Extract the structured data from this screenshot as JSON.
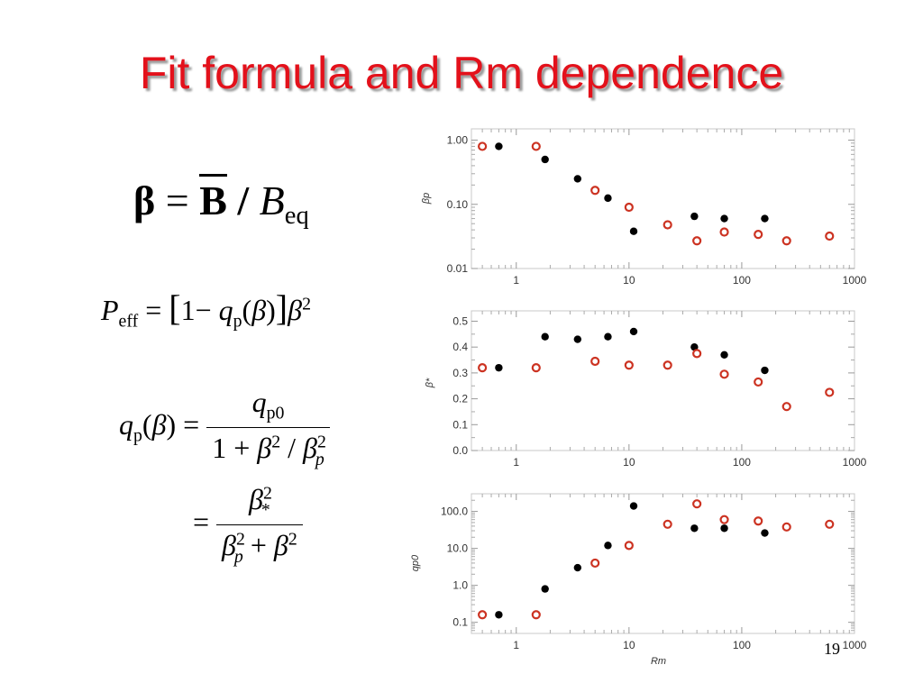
{
  "slide": {
    "title": "Fit formula and Rm dependence",
    "page_number": "19"
  },
  "equations": {
    "beta_definition": {
      "lhs": "β",
      "eq": "=",
      "bbar": "B",
      "slash": "/",
      "B": "B",
      "sub": "eq"
    },
    "p_eff": {
      "P": "P",
      "P_sub": "eff",
      "eq": "=",
      "lbracket": "[",
      "one": "1",
      "minus": "−",
      "q": "q",
      "q_sub": "p",
      "lparen": "(",
      "beta": "β",
      "rparen": ")",
      "rbracket": "]",
      "beta2": "β",
      "sup2": "2"
    },
    "q_p": {
      "q": "q",
      "q_sub": "p",
      "lparen": "(",
      "beta": "β",
      "rparen": ")",
      "eq": "=",
      "num_q": "q",
      "num_sub": "p0",
      "den_one": "1",
      "den_plus": "+",
      "den_beta": "β",
      "den_sup": "2",
      "den_slash": "/",
      "den_beta_p": "β",
      "den_beta_p_sup": "2",
      "den_beta_p_sub": "p"
    },
    "q_p_alt": {
      "eq": "=",
      "num_beta": "β",
      "num_sup": "2",
      "num_sub": "*",
      "den_beta_p": "β",
      "den_sup1": "2",
      "den_sub": "p",
      "den_plus": "+",
      "den_beta": "β",
      "den_sup2": "2"
    }
  },
  "colors": {
    "title": "#e3111b",
    "series_filled": "#000000",
    "series_open": "#cc3322",
    "frame": "#c8c8c8"
  },
  "chart_data": [
    {
      "type": "scatter",
      "xscale": "log",
      "yscale": "log",
      "xlim": [
        0.4,
        1000
      ],
      "ylim": [
        0.01,
        1.5
      ],
      "xticks": [
        1,
        10,
        100,
        1000
      ],
      "xtick_labels": [
        "1",
        "10",
        "100",
        "1000"
      ],
      "yticks": [
        0.01,
        0.1,
        1
      ],
      "ytick_labels": [
        "0.01",
        "0.10",
        "1.00"
      ],
      "ylabel": "βp",
      "xlabel": "",
      "series": [
        {
          "marker": "filled",
          "x": [
            0.7,
            1.8,
            3.5,
            6.5,
            11,
            38,
            70,
            160
          ],
          "y": [
            0.8,
            0.5,
            0.25,
            0.125,
            0.038,
            0.065,
            0.06,
            0.06
          ]
        },
        {
          "marker": "open",
          "x": [
            0.5,
            1.5,
            5,
            10,
            22,
            40,
            70,
            140,
            250,
            600
          ],
          "y": [
            0.8,
            0.8,
            0.165,
            0.09,
            0.048,
            0.027,
            0.037,
            0.034,
            0.027,
            0.032
          ]
        }
      ]
    },
    {
      "type": "scatter",
      "xscale": "log",
      "yscale": "linear",
      "xlim": [
        0.4,
        1000
      ],
      "ylim": [
        0,
        0.54
      ],
      "xticks": [
        1,
        10,
        100,
        1000
      ],
      "xtick_labels": [
        "1",
        "10",
        "100",
        "1000"
      ],
      "yticks": [
        0,
        0.1,
        0.2,
        0.3,
        0.4,
        0.5
      ],
      "ytick_labels": [
        "0.0",
        "0.1",
        "0.2",
        "0.3",
        "0.4",
        "0.5"
      ],
      "ylabel": "β*",
      "xlabel": "",
      "series": [
        {
          "marker": "filled",
          "x": [
            0.7,
            1.8,
            3.5,
            6.5,
            11,
            38,
            70,
            160
          ],
          "y": [
            0.32,
            0.44,
            0.43,
            0.44,
            0.46,
            0.4,
            0.37,
            0.31
          ]
        },
        {
          "marker": "open",
          "x": [
            0.5,
            1.5,
            5,
            10,
            22,
            40,
            70,
            140,
            250,
            600
          ],
          "y": [
            0.32,
            0.32,
            0.345,
            0.33,
            0.33,
            0.375,
            0.295,
            0.265,
            0.17,
            0.225
          ]
        }
      ]
    },
    {
      "type": "scatter",
      "xscale": "log",
      "yscale": "log",
      "xlim": [
        0.4,
        1000
      ],
      "ylim": [
        0.05,
        300
      ],
      "xticks": [
        1,
        10,
        100,
        1000
      ],
      "xtick_labels": [
        "1",
        "10",
        "100",
        "1000"
      ],
      "yticks": [
        0.1,
        1,
        10,
        100
      ],
      "ytick_labels": [
        "0.1",
        "1.0",
        "10.0",
        "100.0"
      ],
      "ylabel": "qp0",
      "xlabel": "Rm",
      "series": [
        {
          "marker": "filled",
          "x": [
            0.7,
            1.8,
            3.5,
            6.5,
            11,
            38,
            70,
            160
          ],
          "y": [
            0.16,
            0.8,
            3.0,
            12,
            140,
            35,
            35,
            26
          ]
        },
        {
          "marker": "open",
          "x": [
            0.5,
            1.5,
            5,
            10,
            22,
            40,
            70,
            140,
            250,
            600
          ],
          "y": [
            0.16,
            0.16,
            4.0,
            12,
            45,
            160,
            60,
            55,
            38,
            45
          ]
        }
      ]
    }
  ]
}
